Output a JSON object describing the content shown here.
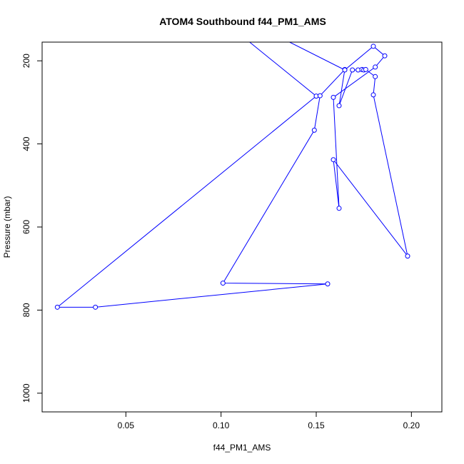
{
  "chart_data": {
    "type": "line",
    "title": "ATOM4 Southbound f44_PM1_AMS",
    "xlabel": "f44_PM1_AMS",
    "ylabel": "Pressure (mbar)",
    "xlim": [
      0.006,
      0.216
    ],
    "ylim": [
      1045,
      155
    ],
    "y_reversed": true,
    "x_ticks": [
      0.05,
      0.1,
      0.15,
      0.2
    ],
    "x_tick_labels": [
      "0.05",
      "0.10",
      "0.15",
      "0.20"
    ],
    "y_ticks": [
      200,
      400,
      600,
      800,
      1000
    ],
    "y_tick_labels": [
      "200",
      "400",
      "600",
      "800",
      "1000"
    ],
    "grid": false,
    "series": [
      {
        "color": "#0000ff",
        "marker": "open-circle",
        "line_start": {
          "x": 0.115,
          "y": 155
        },
        "points": [
          {
            "x": 0.15,
            "y": 285
          },
          {
            "x": 0.014,
            "y": 793
          },
          {
            "x": 0.034,
            "y": 793
          },
          {
            "x": 0.156,
            "y": 737
          },
          {
            "x": 0.101,
            "y": 735
          },
          {
            "x": 0.149,
            "y": 367
          },
          {
            "x": 0.152,
            "y": 284
          },
          {
            "x": 0.165,
            "y": 221
          },
          {
            "x": 0.162,
            "y": 308
          },
          {
            "x": 0.169,
            "y": 222
          },
          {
            "x": 0.172,
            "y": 222
          },
          {
            "x": 0.174,
            "y": 221
          },
          {
            "x": 0.175,
            "y": 222
          },
          {
            "x": 0.176,
            "y": 221
          },
          {
            "x": 0.181,
            "y": 238
          },
          {
            "x": 0.18,
            "y": 282
          },
          {
            "x": 0.198,
            "y": 670
          },
          {
            "x": 0.159,
            "y": 438
          },
          {
            "x": 0.162,
            "y": 555
          },
          {
            "x": 0.159,
            "y": 288
          },
          {
            "x": 0.181,
            "y": 215
          },
          {
            "x": 0.186,
            "y": 188
          },
          {
            "x": 0.18,
            "y": 165
          },
          {
            "x": 0.165,
            "y": 222
          }
        ],
        "line_end": {
          "x": 0.136,
          "y": 155
        }
      }
    ]
  }
}
